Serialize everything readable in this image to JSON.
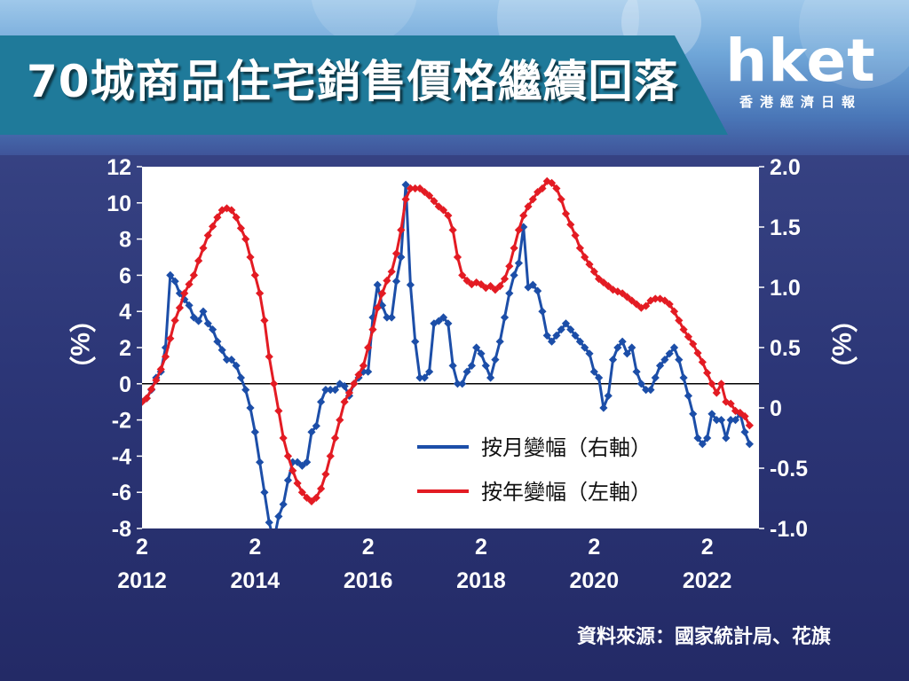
{
  "header": {
    "title": "70城商品住宅銷售價格繼續回落",
    "logo": "hket",
    "logo_sub": "香港經濟日報"
  },
  "source": "資料來源：國家統計局、花旗",
  "colors": {
    "yoy": "#e31b23",
    "mom": "#1c4ea8",
    "banner": "#1f7a9a"
  },
  "chart_data": {
    "type": "line",
    "title": "",
    "xlabel": "",
    "ylabel_left": "（%）",
    "ylabel_right": "（%）",
    "x_range": [
      "2012-02",
      "2023-01"
    ],
    "left_axis": {
      "min": -8,
      "max": 12,
      "ticks": [
        "12",
        "10",
        "8",
        "6",
        "4",
        "2",
        "0",
        "-2",
        "-4",
        "-6",
        "-8"
      ]
    },
    "right_axis": {
      "min": -1.0,
      "max": 2.0,
      "ticks": [
        "2.0",
        "1.5",
        "1.0",
        "0.5",
        "0",
        "-0.5",
        "-1.0"
      ]
    },
    "x_ticks": [
      {
        "month": "2",
        "year": "2012",
        "x": "2012-02"
      },
      {
        "month": "2",
        "year": "2014",
        "x": "2014-02"
      },
      {
        "month": "2",
        "year": "2016",
        "x": "2016-02"
      },
      {
        "month": "2",
        "year": "2018",
        "x": "2018-02"
      },
      {
        "month": "2",
        "year": "2020",
        "x": "2020-02"
      },
      {
        "month": "2",
        "year": "2022",
        "x": "2022-02"
      }
    ],
    "legend_position": "bottom-right",
    "series": [
      {
        "name": "按月變幅（右軸）",
        "axis": "right",
        "color": "#1c4ea8",
        "points": [
          [
            "2012-02",
            0.05
          ],
          [
            "2012-03",
            0.08
          ],
          [
            "2012-04",
            0.15
          ],
          [
            "2012-05",
            0.25
          ],
          [
            "2012-06",
            0.3
          ],
          [
            "2012-07",
            0.5
          ],
          [
            "2012-08",
            1.1
          ],
          [
            "2012-09",
            1.05
          ],
          [
            "2012-10",
            0.95
          ],
          [
            "2012-11",
            0.9
          ],
          [
            "2012-12",
            0.85
          ],
          [
            "2013-01",
            0.75
          ],
          [
            "2013-02",
            0.72
          ],
          [
            "2013-03",
            0.8
          ],
          [
            "2013-04",
            0.7
          ],
          [
            "2013-05",
            0.65
          ],
          [
            "2013-06",
            0.55
          ],
          [
            "2013-07",
            0.48
          ],
          [
            "2013-08",
            0.4
          ],
          [
            "2013-09",
            0.4
          ],
          [
            "2013-10",
            0.35
          ],
          [
            "2013-11",
            0.25
          ],
          [
            "2013-12",
            0.15
          ],
          [
            "2014-01",
            0.0
          ],
          [
            "2014-02",
            -0.2
          ],
          [
            "2014-03",
            -0.45
          ],
          [
            "2014-04",
            -0.7
          ],
          [
            "2014-05",
            -0.95
          ],
          [
            "2014-06",
            -1.1
          ],
          [
            "2014-07",
            -0.9
          ],
          [
            "2014-08",
            -0.8
          ],
          [
            "2014-09",
            -0.6
          ],
          [
            "2014-10",
            -0.45
          ],
          [
            "2014-11",
            -0.45
          ],
          [
            "2014-12",
            -0.48
          ],
          [
            "2015-01",
            -0.45
          ],
          [
            "2015-02",
            -0.2
          ],
          [
            "2015-03",
            -0.15
          ],
          [
            "2015-04",
            0.05
          ],
          [
            "2015-05",
            0.15
          ],
          [
            "2015-06",
            0.15
          ],
          [
            "2015-07",
            0.15
          ],
          [
            "2015-08",
            0.2
          ],
          [
            "2015-09",
            0.18
          ],
          [
            "2015-10",
            0.1
          ],
          [
            "2015-11",
            0.2
          ],
          [
            "2015-12",
            0.25
          ],
          [
            "2016-01",
            0.3
          ],
          [
            "2016-02",
            0.3
          ],
          [
            "2016-03",
            0.75
          ],
          [
            "2016-04",
            1.02
          ],
          [
            "2016-05",
            0.85
          ],
          [
            "2016-06",
            0.75
          ],
          [
            "2016-07",
            0.75
          ],
          [
            "2016-08",
            1.05
          ],
          [
            "2016-09",
            1.25
          ],
          [
            "2016-10",
            1.85
          ],
          [
            "2016-11",
            1.02
          ],
          [
            "2016-12",
            0.55
          ],
          [
            "2017-01",
            0.25
          ],
          [
            "2017-02",
            0.25
          ],
          [
            "2017-03",
            0.3
          ],
          [
            "2017-04",
            0.7
          ],
          [
            "2017-05",
            0.72
          ],
          [
            "2017-06",
            0.75
          ],
          [
            "2017-07",
            0.7
          ],
          [
            "2017-08",
            0.35
          ],
          [
            "2017-09",
            0.2
          ],
          [
            "2017-10",
            0.2
          ],
          [
            "2017-11",
            0.3
          ],
          [
            "2017-12",
            0.35
          ],
          [
            "2018-01",
            0.5
          ],
          [
            "2018-02",
            0.45
          ],
          [
            "2018-03",
            0.35
          ],
          [
            "2018-04",
            0.25
          ],
          [
            "2018-05",
            0.4
          ],
          [
            "2018-06",
            0.55
          ],
          [
            "2018-07",
            0.75
          ],
          [
            "2018-08",
            0.95
          ],
          [
            "2018-09",
            1.1
          ],
          [
            "2018-10",
            1.2
          ],
          [
            "2018-11",
            1.5
          ],
          [
            "2018-12",
            1.0
          ],
          [
            "2019-01",
            1.02
          ],
          [
            "2019-02",
            0.97
          ],
          [
            "2019-03",
            0.8
          ],
          [
            "2019-04",
            0.6
          ],
          [
            "2019-05",
            0.55
          ],
          [
            "2019-06",
            0.6
          ],
          [
            "2019-07",
            0.65
          ],
          [
            "2019-08",
            0.7
          ],
          [
            "2019-09",
            0.65
          ],
          [
            "2019-10",
            0.6
          ],
          [
            "2019-11",
            0.55
          ],
          [
            "2019-12",
            0.5
          ],
          [
            "2020-01",
            0.45
          ],
          [
            "2020-02",
            0.3
          ],
          [
            "2020-03",
            0.25
          ],
          [
            "2020-04",
            0.0
          ],
          [
            "2020-05",
            0.1
          ],
          [
            "2020-06",
            0.4
          ],
          [
            "2020-07",
            0.5
          ],
          [
            "2020-08",
            0.55
          ],
          [
            "2020-09",
            0.45
          ],
          [
            "2020-10",
            0.5
          ],
          [
            "2020-11",
            0.3
          ],
          [
            "2020-12",
            0.2
          ],
          [
            "2021-01",
            0.15
          ],
          [
            "2021-02",
            0.15
          ],
          [
            "2021-03",
            0.25
          ],
          [
            "2021-04",
            0.35
          ],
          [
            "2021-05",
            0.4
          ],
          [
            "2021-06",
            0.45
          ],
          [
            "2021-07",
            0.5
          ],
          [
            "2021-08",
            0.4
          ],
          [
            "2021-09",
            0.25
          ],
          [
            "2021-10",
            0.1
          ],
          [
            "2021-11",
            -0.05
          ],
          [
            "2021-12",
            -0.25
          ],
          [
            "2022-01",
            -0.3
          ],
          [
            "2022-02",
            -0.25
          ],
          [
            "2022-03",
            -0.05
          ],
          [
            "2022-04",
            -0.1
          ],
          [
            "2022-05",
            -0.1
          ],
          [
            "2022-06",
            -0.25
          ],
          [
            "2022-07",
            -0.1
          ],
          [
            "2022-08",
            -0.1
          ],
          [
            "2022-09",
            -0.05
          ],
          [
            "2022-10",
            -0.2
          ],
          [
            "2022-11",
            -0.3
          ]
        ]
      },
      {
        "name": "按年變幅（左軸）",
        "axis": "left",
        "color": "#e31b23",
        "points": [
          [
            "2012-02",
            -1.0
          ],
          [
            "2012-03",
            -0.8
          ],
          [
            "2012-04",
            -0.3
          ],
          [
            "2012-05",
            0.2
          ],
          [
            "2012-06",
            0.8
          ],
          [
            "2012-07",
            1.5
          ],
          [
            "2012-08",
            2.5
          ],
          [
            "2012-09",
            3.5
          ],
          [
            "2012-10",
            4.2
          ],
          [
            "2012-11",
            5.0
          ],
          [
            "2012-12",
            5.5
          ],
          [
            "2013-01",
            6.0
          ],
          [
            "2013-02",
            6.8
          ],
          [
            "2013-03",
            7.5
          ],
          [
            "2013-04",
            8.2
          ],
          [
            "2013-05",
            8.7
          ],
          [
            "2013-06",
            9.2
          ],
          [
            "2013-07",
            9.6
          ],
          [
            "2013-08",
            9.7
          ],
          [
            "2013-09",
            9.6
          ],
          [
            "2013-10",
            9.2
          ],
          [
            "2013-11",
            8.6
          ],
          [
            "2013-12",
            8.0
          ],
          [
            "2014-01",
            7.0
          ],
          [
            "2014-02",
            6.0
          ],
          [
            "2014-03",
            5.0
          ],
          [
            "2014-04",
            3.5
          ],
          [
            "2014-05",
            1.5
          ],
          [
            "2014-06",
            0.0
          ],
          [
            "2014-07",
            -1.5
          ],
          [
            "2014-08",
            -3.0
          ],
          [
            "2014-09",
            -4.0
          ],
          [
            "2014-10",
            -4.8
          ],
          [
            "2014-11",
            -5.5
          ],
          [
            "2014-12",
            -6.0
          ],
          [
            "2015-01",
            -6.3
          ],
          [
            "2015-02",
            -6.5
          ],
          [
            "2015-03",
            -6.3
          ],
          [
            "2015-04",
            -5.8
          ],
          [
            "2015-05",
            -5.0
          ],
          [
            "2015-06",
            -4.0
          ],
          [
            "2015-07",
            -3.0
          ],
          [
            "2015-08",
            -2.0
          ],
          [
            "2015-09",
            -1.0
          ],
          [
            "2015-10",
            -0.5
          ],
          [
            "2015-11",
            0.0
          ],
          [
            "2015-12",
            0.5
          ],
          [
            "2016-01",
            1.0
          ],
          [
            "2016-02",
            2.0
          ],
          [
            "2016-03",
            3.0
          ],
          [
            "2016-04",
            4.2
          ],
          [
            "2016-05",
            5.0
          ],
          [
            "2016-06",
            5.7
          ],
          [
            "2016-07",
            6.2
          ],
          [
            "2016-08",
            7.2
          ],
          [
            "2016-09",
            8.5
          ],
          [
            "2016-10",
            10.2
          ],
          [
            "2016-11",
            10.8
          ],
          [
            "2016-12",
            10.8
          ],
          [
            "2017-01",
            10.8
          ],
          [
            "2017-02",
            10.6
          ],
          [
            "2017-03",
            10.4
          ],
          [
            "2017-04",
            10.1
          ],
          [
            "2017-05",
            9.8
          ],
          [
            "2017-06",
            9.6
          ],
          [
            "2017-07",
            9.3
          ],
          [
            "2017-08",
            8.5
          ],
          [
            "2017-09",
            7.0
          ],
          [
            "2017-10",
            6.0
          ],
          [
            "2017-11",
            5.7
          ],
          [
            "2017-12",
            5.5
          ],
          [
            "2018-01",
            5.6
          ],
          [
            "2018-02",
            5.5
          ],
          [
            "2018-03",
            5.3
          ],
          [
            "2018-04",
            5.4
          ],
          [
            "2018-05",
            5.2
          ],
          [
            "2018-06",
            5.4
          ],
          [
            "2018-07",
            5.8
          ],
          [
            "2018-08",
            6.5
          ],
          [
            "2018-09",
            7.5
          ],
          [
            "2018-10",
            8.5
          ],
          [
            "2018-11",
            9.3
          ],
          [
            "2018-12",
            9.8
          ],
          [
            "2019-01",
            10.2
          ],
          [
            "2019-02",
            10.6
          ],
          [
            "2019-03",
            10.8
          ],
          [
            "2019-04",
            11.2
          ],
          [
            "2019-05",
            11.1
          ],
          [
            "2019-06",
            10.8
          ],
          [
            "2019-07",
            10.2
          ],
          [
            "2019-08",
            9.4
          ],
          [
            "2019-09",
            8.8
          ],
          [
            "2019-10",
            8.2
          ],
          [
            "2019-11",
            7.5
          ],
          [
            "2019-12",
            7.0
          ],
          [
            "2020-01",
            6.6
          ],
          [
            "2020-02",
            6.2
          ],
          [
            "2020-03",
            5.8
          ],
          [
            "2020-04",
            5.6
          ],
          [
            "2020-05",
            5.4
          ],
          [
            "2020-06",
            5.2
          ],
          [
            "2020-07",
            5.1
          ],
          [
            "2020-08",
            5.0
          ],
          [
            "2020-09",
            4.8
          ],
          [
            "2020-10",
            4.6
          ],
          [
            "2020-11",
            4.4
          ],
          [
            "2020-12",
            4.2
          ],
          [
            "2021-01",
            4.3
          ],
          [
            "2021-02",
            4.6
          ],
          [
            "2021-03",
            4.7
          ],
          [
            "2021-04",
            4.7
          ],
          [
            "2021-05",
            4.6
          ],
          [
            "2021-06",
            4.4
          ],
          [
            "2021-07",
            4.0
          ],
          [
            "2021-08",
            3.5
          ],
          [
            "2021-09",
            3.0
          ],
          [
            "2021-10",
            2.6
          ],
          [
            "2021-11",
            2.2
          ],
          [
            "2021-12",
            1.7
          ],
          [
            "2022-01",
            1.2
          ],
          [
            "2022-02",
            0.6
          ],
          [
            "2022-03",
            0.0
          ],
          [
            "2022-04",
            -0.5
          ],
          [
            "2022-05",
            0.0
          ],
          [
            "2022-06",
            -1.0
          ],
          [
            "2022-07",
            -1.1
          ],
          [
            "2022-08",
            -1.5
          ],
          [
            "2022-09",
            -1.6
          ],
          [
            "2022-10",
            -1.8
          ],
          [
            "2022-11",
            -2.3
          ]
        ]
      }
    ]
  }
}
